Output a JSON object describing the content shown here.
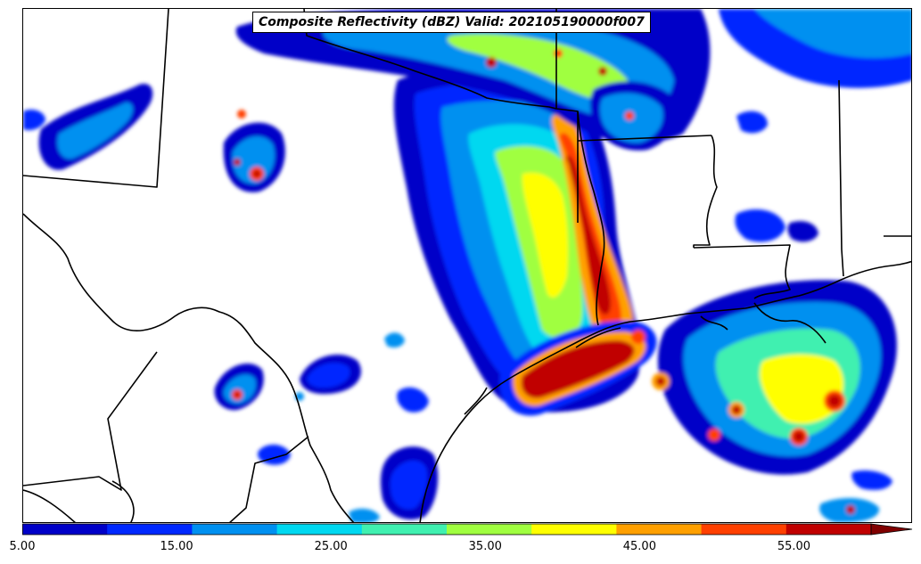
{
  "map": {
    "title": "Composite Reflectivity (dBZ) Valid: 202105190000f007",
    "variable": "Composite Reflectivity",
    "units": "dBZ",
    "valid": "202105190000f007"
  },
  "colorbar": {
    "min": 5,
    "max": 60,
    "extend": "max",
    "colors": [
      "#0000c8",
      "#0028ff",
      "#0090f0",
      "#00d8f0",
      "#40f0b0",
      "#a0ff40",
      "#ffff00",
      "#ffa000",
      "#ff4000",
      "#c00000",
      "#800000"
    ],
    "tick_labels": [
      "5.00",
      "15.00",
      "25.00",
      "35.00",
      "45.00",
      "55.00"
    ],
    "tick_values": [
      5,
      15,
      25,
      35,
      45,
      55
    ]
  }
}
